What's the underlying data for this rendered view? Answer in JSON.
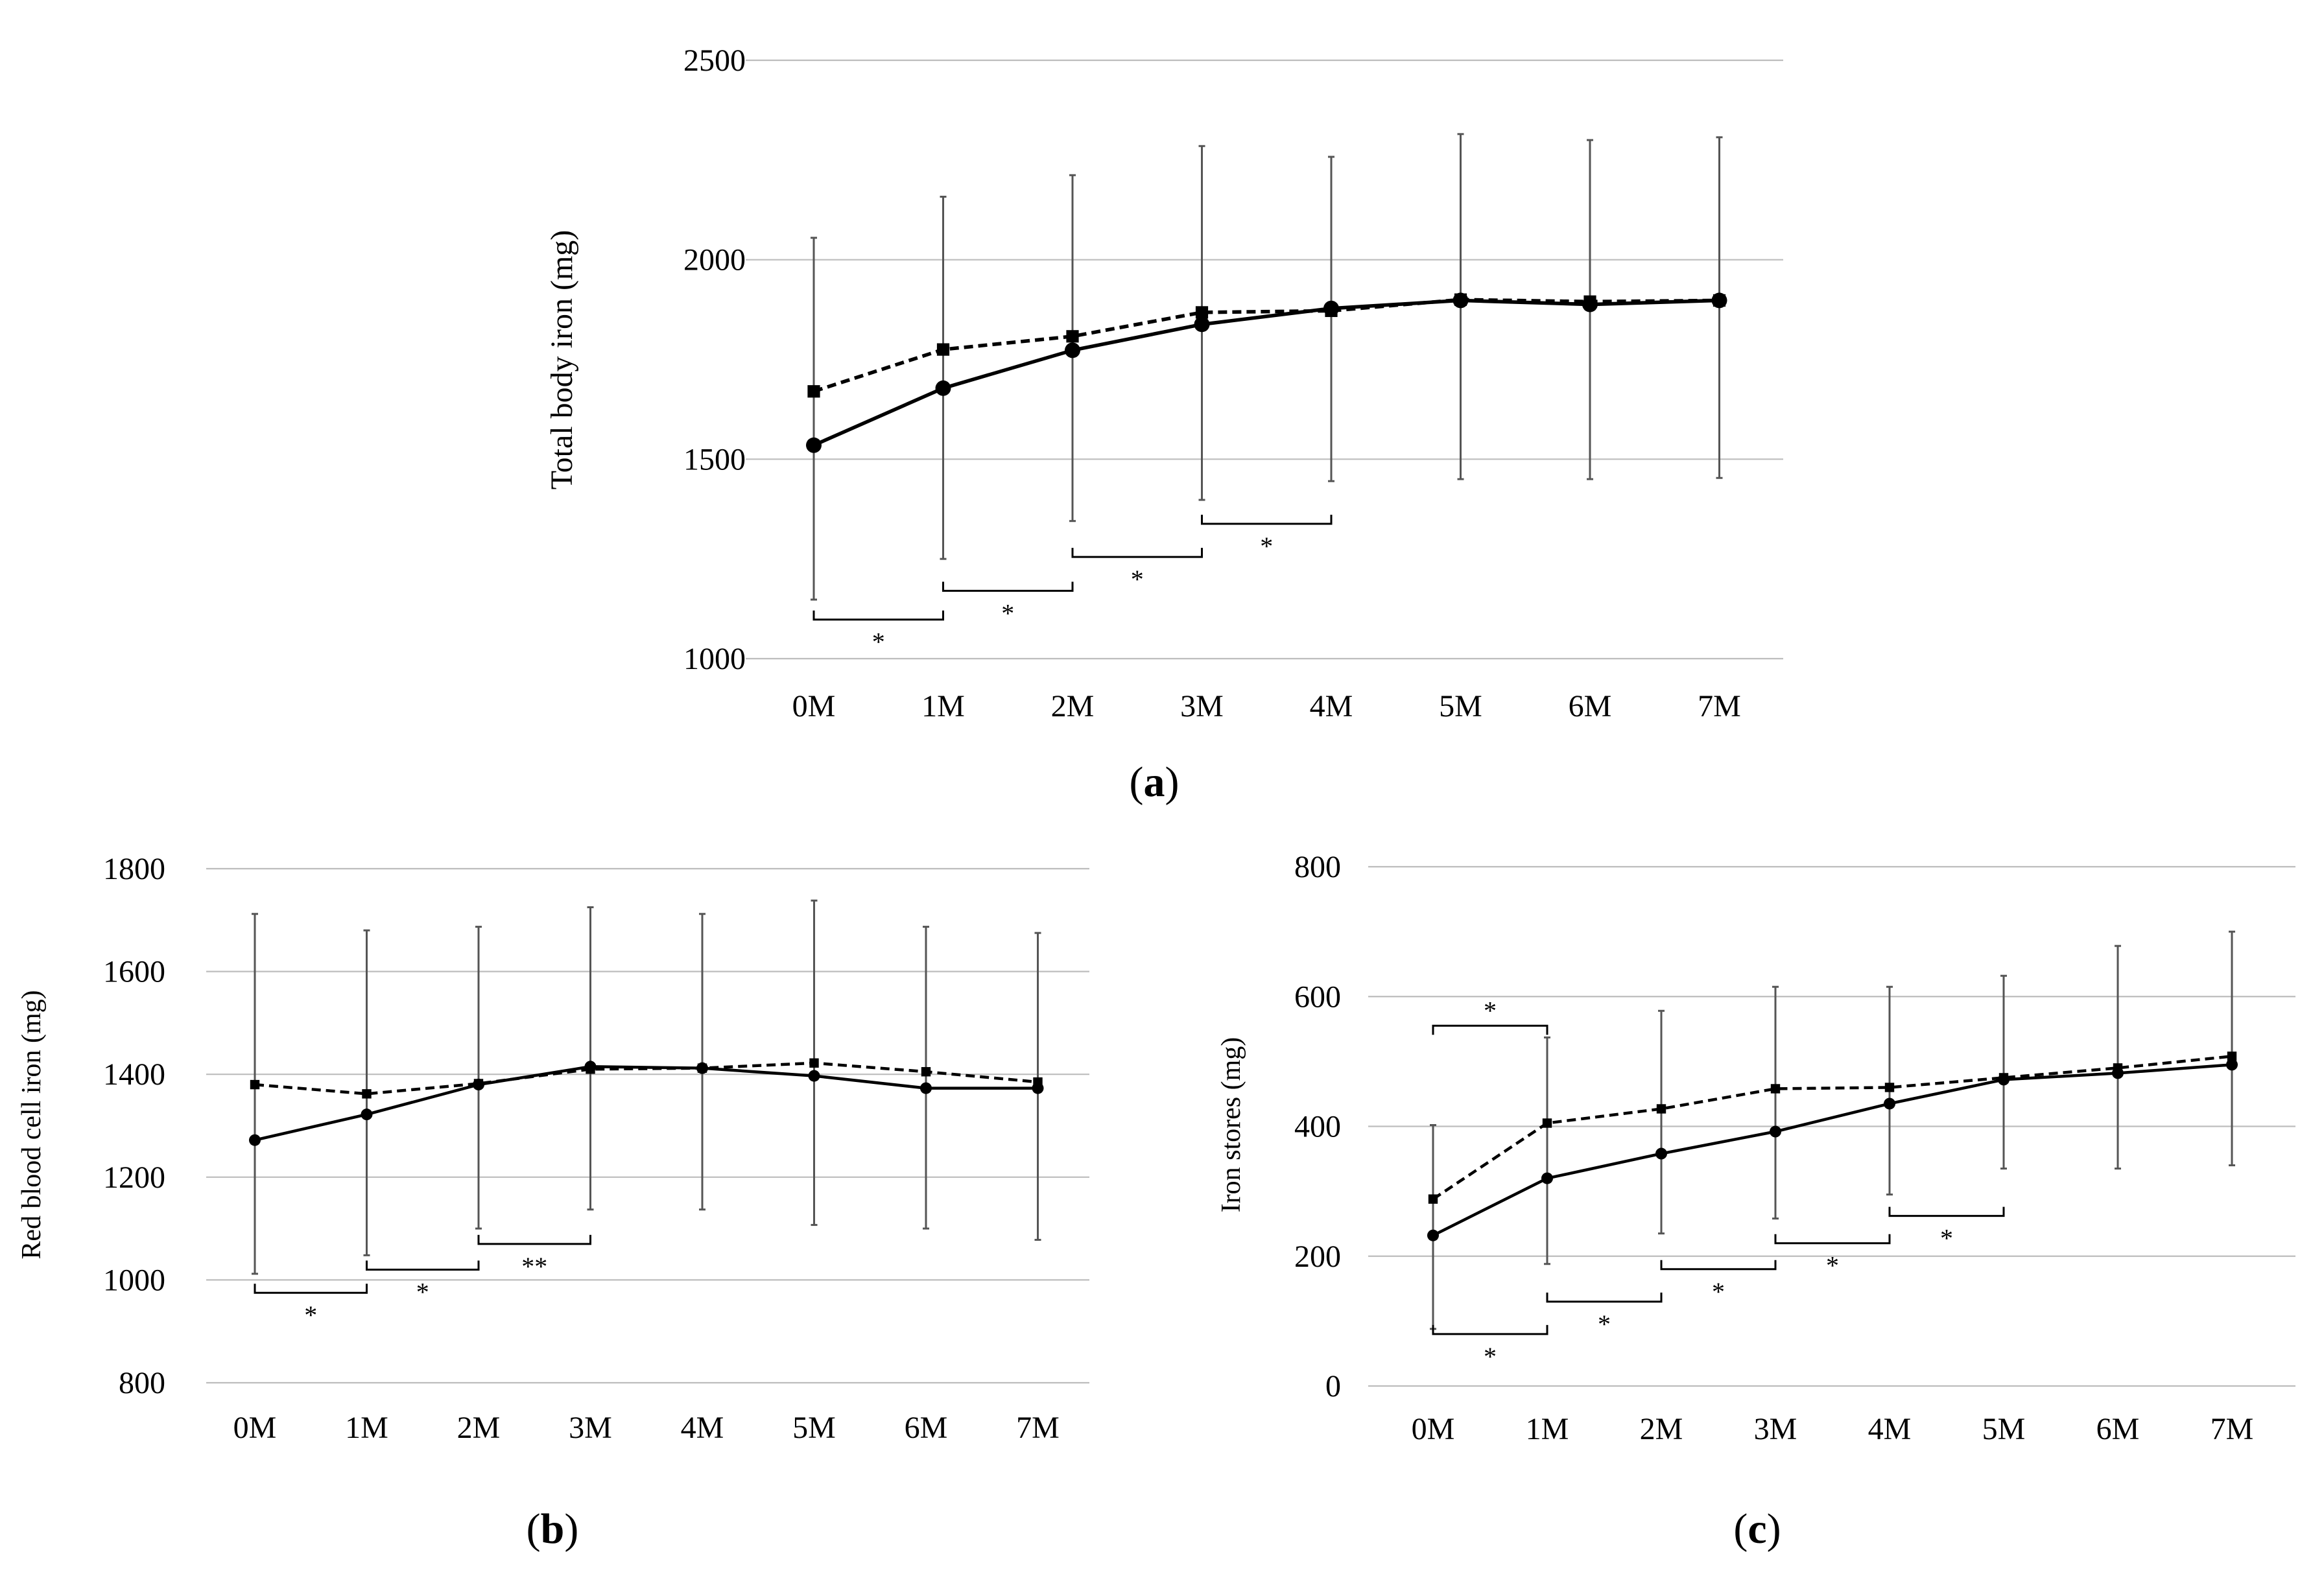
{
  "figure": {
    "panel_labels": [
      "(a)",
      "(b)",
      "(c)"
    ]
  },
  "chart_data": [
    {
      "id": "a",
      "type": "line",
      "title": "",
      "panel_label": "(a)",
      "xlabel": "",
      "ylabel": "Total body iron (mg)",
      "categories": [
        "0M",
        "1M",
        "2M",
        "3M",
        "4M",
        "5M",
        "6M",
        "7M"
      ],
      "ylim": [
        1000,
        2500
      ],
      "yticks": [
        1000,
        1500,
        2000,
        2500
      ],
      "grid": true,
      "series": [
        {
          "name": "solid-circle",
          "line": "solid",
          "marker": "circle",
          "values": [
            1535,
            1678,
            1773,
            1838,
            1878,
            1898,
            1888,
            1898
          ],
          "error_low": [
            1148,
            1250,
            1345,
            1398,
            1445,
            1450,
            1450,
            1453
          ],
          "error_high": [
            2055,
            2158,
            2212,
            2285,
            2258,
            2315,
            2300,
            2307
          ]
        },
        {
          "name": "dashed-square",
          "line": "dashed",
          "marker": "square",
          "values": [
            1670,
            1775,
            1808,
            1868,
            1872,
            1900,
            1895,
            1898
          ]
        }
      ],
      "significance": [
        {
          "from": 0,
          "to": 1,
          "level": 1098,
          "label": "*"
        },
        {
          "from": 1,
          "to": 2,
          "level": 1170,
          "label": "*"
        },
        {
          "from": 2,
          "to": 3,
          "level": 1255,
          "label": "*"
        },
        {
          "from": 3,
          "to": 4,
          "level": 1338,
          "label": "*"
        }
      ]
    },
    {
      "id": "b",
      "type": "line",
      "title": "",
      "panel_label": "(b)",
      "xlabel": "",
      "ylabel": "Red blood cell iron (mg)",
      "categories": [
        "0M",
        "1M",
        "2M",
        "3M",
        "4M",
        "5M",
        "6M",
        "7M"
      ],
      "ylim": [
        800,
        1800
      ],
      "yticks": [
        800,
        1000,
        1200,
        1400,
        1600,
        1800
      ],
      "grid": true,
      "series": [
        {
          "name": "solid-circle",
          "line": "solid",
          "marker": "circle",
          "values": [
            1272,
            1322,
            1380,
            1415,
            1412,
            1397,
            1373,
            1373
          ],
          "error_low": [
            1012,
            1048,
            1100,
            1137,
            1137,
            1107,
            1100,
            1078
          ],
          "error_high": [
            1712,
            1680,
            1687,
            1725,
            1712,
            1738,
            1687,
            1675
          ]
        },
        {
          "name": "dashed-square",
          "line": "dashed",
          "marker": "square",
          "values": [
            1380,
            1362,
            1382,
            1410,
            1412,
            1422,
            1405,
            1385
          ]
        }
      ],
      "significance": [
        {
          "from": 0,
          "to": 1,
          "level": 975,
          "label": "*"
        },
        {
          "from": 1,
          "to": 2,
          "level": 1020,
          "label": "*"
        },
        {
          "from": 2,
          "to": 3,
          "level": 1070,
          "label": "**"
        }
      ]
    },
    {
      "id": "c",
      "type": "line",
      "title": "",
      "panel_label": "(c)",
      "xlabel": "",
      "ylabel": "Iron stores (mg)",
      "categories": [
        "0M",
        "1M",
        "2M",
        "3M",
        "4M",
        "5M",
        "6M",
        "7M"
      ],
      "ylim": [
        0,
        800
      ],
      "yticks": [
        0,
        200,
        400,
        600,
        800
      ],
      "grid": true,
      "series": [
        {
          "name": "solid-circle",
          "line": "solid",
          "marker": "circle",
          "values": [
            232,
            320,
            358,
            392,
            435,
            472,
            482,
            495
          ],
          "error_low": [
            88,
            188,
            235,
            258,
            295,
            335,
            335,
            340
          ],
          "error_high": [
            402,
            537,
            578,
            615,
            615,
            632,
            678,
            700
          ]
        },
        {
          "name": "dashed-square",
          "line": "dashed",
          "marker": "square",
          "values": [
            288,
            405,
            427,
            458,
            460,
            475,
            490,
            508
          ]
        }
      ],
      "significance": [
        {
          "from": 0,
          "to": 1,
          "level": 555,
          "label": "*",
          "direction": "up"
        },
        {
          "from": 0,
          "to": 1,
          "level": 80,
          "label": "*"
        },
        {
          "from": 1,
          "to": 2,
          "level": 130,
          "label": "*"
        },
        {
          "from": 2,
          "to": 3,
          "level": 180,
          "label": "*"
        },
        {
          "from": 3,
          "to": 4,
          "level": 220,
          "label": "*"
        },
        {
          "from": 4,
          "to": 5,
          "level": 262,
          "label": "*"
        }
      ]
    }
  ]
}
